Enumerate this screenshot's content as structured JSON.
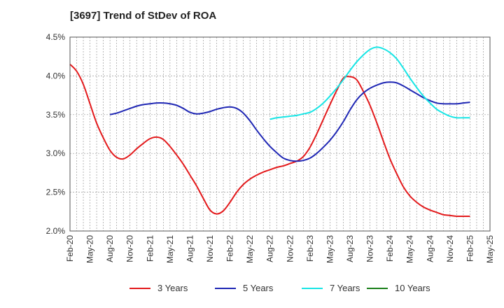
{
  "chart_data": {
    "type": "line",
    "title": "[3697]  Trend of StDev of ROA",
    "xlabel": "",
    "ylabel": "",
    "ylim": [
      2.0,
      4.5
    ],
    "y_ticks": [
      "2.0%",
      "2.5%",
      "3.0%",
      "3.5%",
      "4.0%",
      "4.5%"
    ],
    "y_tick_values": [
      2.0,
      2.5,
      3.0,
      3.5,
      4.0,
      4.5
    ],
    "x_ticks": [
      "Feb-20",
      "May-20",
      "Aug-20",
      "Nov-20",
      "Feb-21",
      "May-21",
      "Aug-21",
      "Nov-21",
      "Feb-22",
      "May-22",
      "Aug-22",
      "Nov-22",
      "Feb-23",
      "May-23",
      "Aug-23",
      "Nov-23",
      "Feb-24",
      "May-24",
      "Aug-24",
      "Nov-24",
      "Feb-25",
      "May-25"
    ],
    "grid": true,
    "legend_position": "bottom",
    "series": [
      {
        "name": "3 Years",
        "color": "#e31a1c",
        "x": [
          "Feb-20",
          "Mar-20",
          "Apr-20",
          "May-20",
          "Jun-20",
          "Jul-20",
          "Aug-20",
          "Sep-20",
          "Oct-20",
          "Nov-20",
          "Dec-20",
          "Jan-21",
          "Feb-21",
          "Mar-21",
          "Apr-21",
          "May-21",
          "Jun-21",
          "Jul-21",
          "Aug-21",
          "Sep-21",
          "Oct-21",
          "Nov-21",
          "Dec-21",
          "Jan-22",
          "Feb-22",
          "Mar-22",
          "Apr-22",
          "May-22",
          "Jun-22",
          "Jul-22",
          "Aug-22",
          "Sep-22",
          "Oct-22",
          "Nov-22",
          "Dec-22",
          "Jan-23",
          "Feb-23",
          "Mar-23",
          "Apr-23",
          "May-23",
          "Jun-23",
          "Jul-23",
          "Aug-23",
          "Sep-23",
          "Oct-23",
          "Nov-23",
          "Dec-23",
          "Jan-24",
          "Feb-24",
          "Mar-24",
          "Apr-24",
          "May-24",
          "Jun-24",
          "Jul-24",
          "Aug-24",
          "Sep-24",
          "Oct-24",
          "Nov-24",
          "Dec-24",
          "Jan-25",
          "Feb-25"
        ],
        "values": [
          4.15,
          4.06,
          3.89,
          3.64,
          3.39,
          3.2,
          3.04,
          2.95,
          2.93,
          2.98,
          3.06,
          3.13,
          3.19,
          3.21,
          3.18,
          3.09,
          2.98,
          2.86,
          2.72,
          2.58,
          2.42,
          2.27,
          2.22,
          2.26,
          2.37,
          2.5,
          2.6,
          2.67,
          2.72,
          2.76,
          2.79,
          2.82,
          2.84,
          2.87,
          2.9,
          2.96,
          3.08,
          3.25,
          3.44,
          3.63,
          3.81,
          3.97,
          3.99,
          3.95,
          3.8,
          3.62,
          3.4,
          3.16,
          2.93,
          2.74,
          2.57,
          2.45,
          2.37,
          2.31,
          2.27,
          2.24,
          2.21,
          2.2,
          2.19,
          2.19,
          2.19
        ]
      },
      {
        "name": "5 Years",
        "color": "#1f27b4",
        "x": [
          "Aug-20",
          "Sep-20",
          "Oct-20",
          "Nov-20",
          "Dec-20",
          "Jan-21",
          "Feb-21",
          "Mar-21",
          "Apr-21",
          "May-21",
          "Jun-21",
          "Jul-21",
          "Aug-21",
          "Sep-21",
          "Oct-21",
          "Nov-21",
          "Dec-21",
          "Jan-22",
          "Feb-22",
          "Mar-22",
          "Apr-22",
          "May-22",
          "Jun-22",
          "Jul-22",
          "Aug-22",
          "Sep-22",
          "Oct-22",
          "Nov-22",
          "Dec-22",
          "Jan-23",
          "Feb-23",
          "Mar-23",
          "Apr-23",
          "May-23",
          "Jun-23",
          "Jul-23",
          "Aug-23",
          "Sep-23",
          "Oct-23",
          "Nov-23",
          "Dec-23",
          "Jan-24",
          "Feb-24",
          "Mar-24",
          "Apr-24",
          "May-24",
          "Jun-24",
          "Jul-24",
          "Aug-24",
          "Sep-24",
          "Oct-24",
          "Nov-24",
          "Dec-24",
          "Jan-25",
          "Feb-25"
        ],
        "values": [
          3.5,
          3.52,
          3.55,
          3.58,
          3.61,
          3.63,
          3.64,
          3.65,
          3.65,
          3.64,
          3.62,
          3.58,
          3.53,
          3.51,
          3.52,
          3.54,
          3.57,
          3.59,
          3.6,
          3.58,
          3.52,
          3.42,
          3.3,
          3.19,
          3.09,
          3.01,
          2.94,
          2.91,
          2.9,
          2.91,
          2.94,
          3.0,
          3.08,
          3.17,
          3.28,
          3.41,
          3.56,
          3.69,
          3.78,
          3.84,
          3.88,
          3.91,
          3.92,
          3.91,
          3.87,
          3.82,
          3.77,
          3.72,
          3.68,
          3.65,
          3.64,
          3.64,
          3.64,
          3.65,
          3.66
        ]
      },
      {
        "name": "7 Years",
        "color": "#17e5e5",
        "x": [
          "Aug-22",
          "Sep-22",
          "Oct-22",
          "Nov-22",
          "Dec-22",
          "Jan-23",
          "Feb-23",
          "Mar-23",
          "Apr-23",
          "May-23",
          "Jun-23",
          "Jul-23",
          "Aug-23",
          "Sep-23",
          "Oct-23",
          "Nov-23",
          "Dec-23",
          "Jan-24",
          "Feb-24",
          "Mar-24",
          "Apr-24",
          "May-24",
          "Jun-24",
          "Jul-24",
          "Aug-24",
          "Sep-24",
          "Oct-24",
          "Nov-24",
          "Dec-24",
          "Jan-25",
          "Feb-25"
        ],
        "values": [
          3.44,
          3.46,
          3.47,
          3.48,
          3.49,
          3.51,
          3.53,
          3.58,
          3.65,
          3.74,
          3.84,
          3.95,
          4.07,
          4.18,
          4.27,
          4.34,
          4.37,
          4.35,
          4.3,
          4.22,
          4.1,
          3.97,
          3.85,
          3.74,
          3.65,
          3.57,
          3.52,
          3.48,
          3.46,
          3.46,
          3.46
        ]
      },
      {
        "name": "10 Years",
        "color": "#1a7f1a",
        "x": [],
        "values": []
      }
    ]
  }
}
